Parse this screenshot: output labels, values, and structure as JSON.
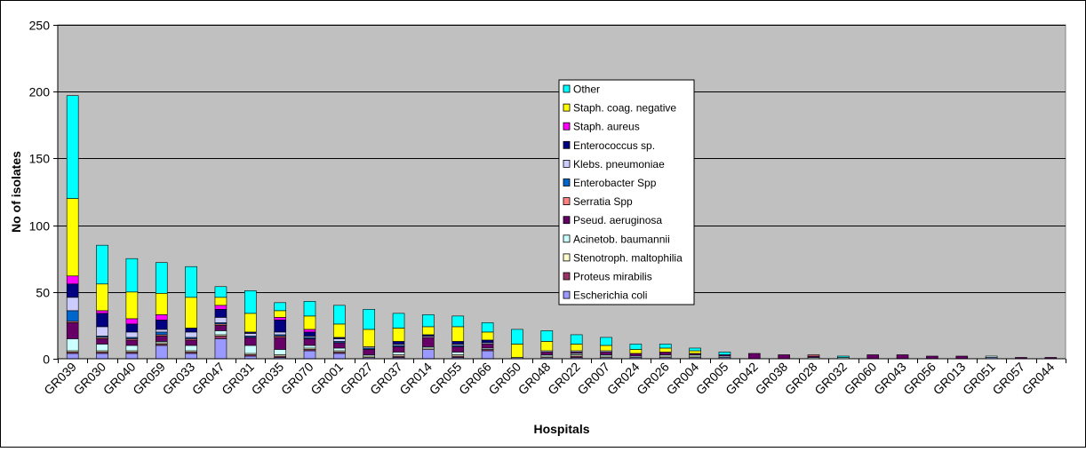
{
  "chart_data": {
    "type": "bar",
    "stacked": true,
    "title": "",
    "xlabel": "Hospitals",
    "ylabel": "No of isolates",
    "ylim": [
      0,
      250
    ],
    "yticks": [
      0,
      50,
      100,
      150,
      200,
      250
    ],
    "grid": true,
    "legend_position": "top-center",
    "plot_background": "#c0c0c0",
    "categories": [
      "GR039",
      "GR030",
      "GR040",
      "GR059",
      "GR033",
      "GR047",
      "GR031",
      "GR035",
      "GR070",
      "GR001",
      "GR027",
      "GR037",
      "GR014",
      "GR055",
      "GR066",
      "GR050",
      "GR048",
      "GR022",
      "GR007",
      "GR024",
      "GR026",
      "GR004",
      "GR005",
      "GR042",
      "GR038",
      "GR028",
      "GR032",
      "GR060",
      "GR043",
      "GR056",
      "GR013",
      "GR051",
      "GR057",
      "GR044"
    ],
    "series": [
      {
        "name": "Escherichia coli",
        "color": "#9999ff",
        "values": [
          4,
          4,
          4,
          10,
          4,
          15,
          2,
          1,
          6,
          4,
          1,
          1,
          7,
          1,
          6,
          1,
          1,
          1,
          1,
          1,
          1,
          1,
          1,
          0,
          0,
          0,
          0,
          0,
          0,
          0,
          0,
          1,
          0,
          0
        ]
      },
      {
        "name": "Proteus mirabilis",
        "color": "#993366",
        "values": [
          1,
          1,
          1,
          1,
          1,
          2,
          1,
          1,
          1,
          1,
          0,
          1,
          0,
          1,
          1,
          0,
          0,
          1,
          0,
          0,
          0,
          0,
          0,
          0,
          0,
          0,
          0,
          0,
          0,
          0,
          0,
          0,
          0,
          0
        ]
      },
      {
        "name": "Stenotroph. maltophilia",
        "color": "#ffffcc",
        "values": [
          1,
          1,
          1,
          1,
          1,
          1,
          1,
          1,
          1,
          1,
          1,
          1,
          1,
          1,
          0,
          0,
          1,
          1,
          1,
          0,
          1,
          1,
          0,
          0,
          0,
          0,
          0,
          0,
          0,
          0,
          0,
          0,
          0,
          0
        ]
      },
      {
        "name": "Acinetob. baumannii",
        "color": "#ccffff",
        "values": [
          9,
          5,
          4,
          1,
          4,
          3,
          6,
          4,
          2,
          2,
          1,
          2,
          1,
          2,
          1,
          0,
          1,
          1,
          1,
          1,
          1,
          1,
          1,
          0,
          0,
          1,
          1,
          0,
          0,
          0,
          0,
          1,
          0,
          0
        ]
      },
      {
        "name": "Pseud. aeruginosa",
        "color": "#660066",
        "values": [
          12,
          4,
          4,
          4,
          4,
          4,
          6,
          9,
          5,
          4,
          4,
          4,
          7,
          4,
          3,
          0,
          2,
          1,
          2,
          2,
          2,
          1,
          1,
          4,
          3,
          1,
          0,
          3,
          3,
          2,
          2,
          0,
          1,
          1
        ]
      },
      {
        "name": "Serratia Spp",
        "color": "#ff8080",
        "values": [
          1,
          1,
          1,
          1,
          1,
          1,
          0,
          1,
          0,
          0,
          0,
          0,
          0,
          0,
          0,
          0,
          0,
          0,
          0,
          0,
          0,
          0,
          0,
          0,
          0,
          1,
          0,
          0,
          0,
          0,
          0,
          0,
          0,
          0
        ]
      },
      {
        "name": "Enterobacter Spp",
        "color": "#0066cc",
        "values": [
          8,
          1,
          1,
          2,
          1,
          1,
          1,
          1,
          1,
          1,
          1,
          1,
          0,
          1,
          0,
          0,
          0,
          0,
          0,
          0,
          0,
          0,
          0,
          0,
          0,
          0,
          0,
          0,
          0,
          0,
          0,
          0,
          0,
          0
        ]
      },
      {
        "name": "Klebs. pneumoniae",
        "color": "#ccccff",
        "values": [
          10,
          7,
          4,
          2,
          4,
          4,
          2,
          2,
          1,
          2,
          1,
          1,
          1,
          1,
          1,
          0,
          1,
          1,
          1,
          0,
          0,
          0,
          0,
          0,
          0,
          0,
          0,
          0,
          0,
          0,
          0,
          0,
          0,
          0
        ]
      },
      {
        "name": "Enterococcus sp.",
        "color": "#000080",
        "values": [
          10,
          10,
          6,
          7,
          3,
          6,
          1,
          9,
          3,
          1,
          0,
          2,
          1,
          2,
          2,
          0,
          0,
          0,
          0,
          0,
          0,
          0,
          0,
          0,
          0,
          0,
          0,
          0,
          0,
          0,
          0,
          0,
          0,
          0
        ]
      },
      {
        "name": "Staph. aureus",
        "color": "#ff00ff",
        "values": [
          6,
          2,
          4,
          4,
          0,
          3,
          0,
          2,
          2,
          0,
          0,
          0,
          0,
          0,
          0,
          0,
          0,
          0,
          0,
          0,
          0,
          0,
          0,
          0,
          0,
          0,
          0,
          0,
          0,
          0,
          0,
          0,
          0,
          0
        ]
      },
      {
        "name": "Staph. coag. negative",
        "color": "#ffff00",
        "values": [
          58,
          20,
          20,
          16,
          23,
          6,
          14,
          5,
          10,
          10,
          13,
          10,
          6,
          11,
          6,
          10,
          7,
          5,
          4,
          3,
          3,
          2,
          0,
          0,
          0,
          0,
          0,
          0,
          0,
          0,
          0,
          0,
          0,
          0
        ]
      },
      {
        "name": "Other",
        "color": "#00ffff",
        "values": [
          77,
          29,
          25,
          23,
          23,
          8,
          17,
          6,
          11,
          14,
          15,
          11,
          9,
          8,
          7,
          11,
          8,
          7,
          6,
          4,
          3,
          2,
          2,
          0,
          0,
          0,
          1,
          0,
          0,
          0,
          0,
          0,
          0,
          0
        ]
      }
    ]
  }
}
